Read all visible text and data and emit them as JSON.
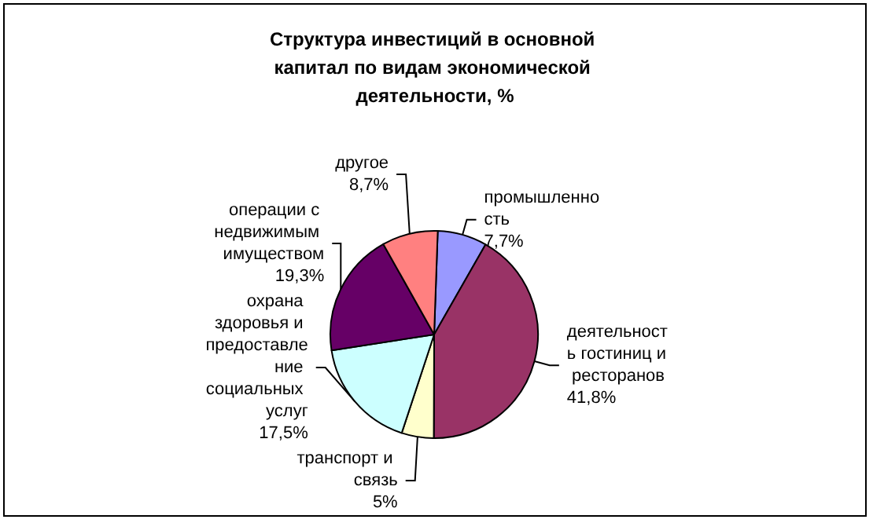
{
  "chart_data": {
    "type": "pie",
    "title": "Структура инвестиций в основной капитал по видам экономической деятельности, %",
    "categories": [
      "промышленность",
      "деятельность гостиниц и ресторанов",
      "транспорт и связь",
      "охрана здоровья и предоставление социальных услуг",
      "операции с недвижимым имуществом",
      "другое"
    ],
    "values": [
      7.7,
      41.8,
      5,
      17.5,
      19.3,
      8.7
    ],
    "value_labels": [
      "7,7%",
      "41,8%",
      "5%",
      "17,5%",
      "19,3%",
      "8,7%"
    ],
    "colors": [
      "#9999ff",
      "#993366",
      "#ffffcc",
      "#ccffff",
      "#660066",
      "#ff8080"
    ],
    "legend": false
  }
}
